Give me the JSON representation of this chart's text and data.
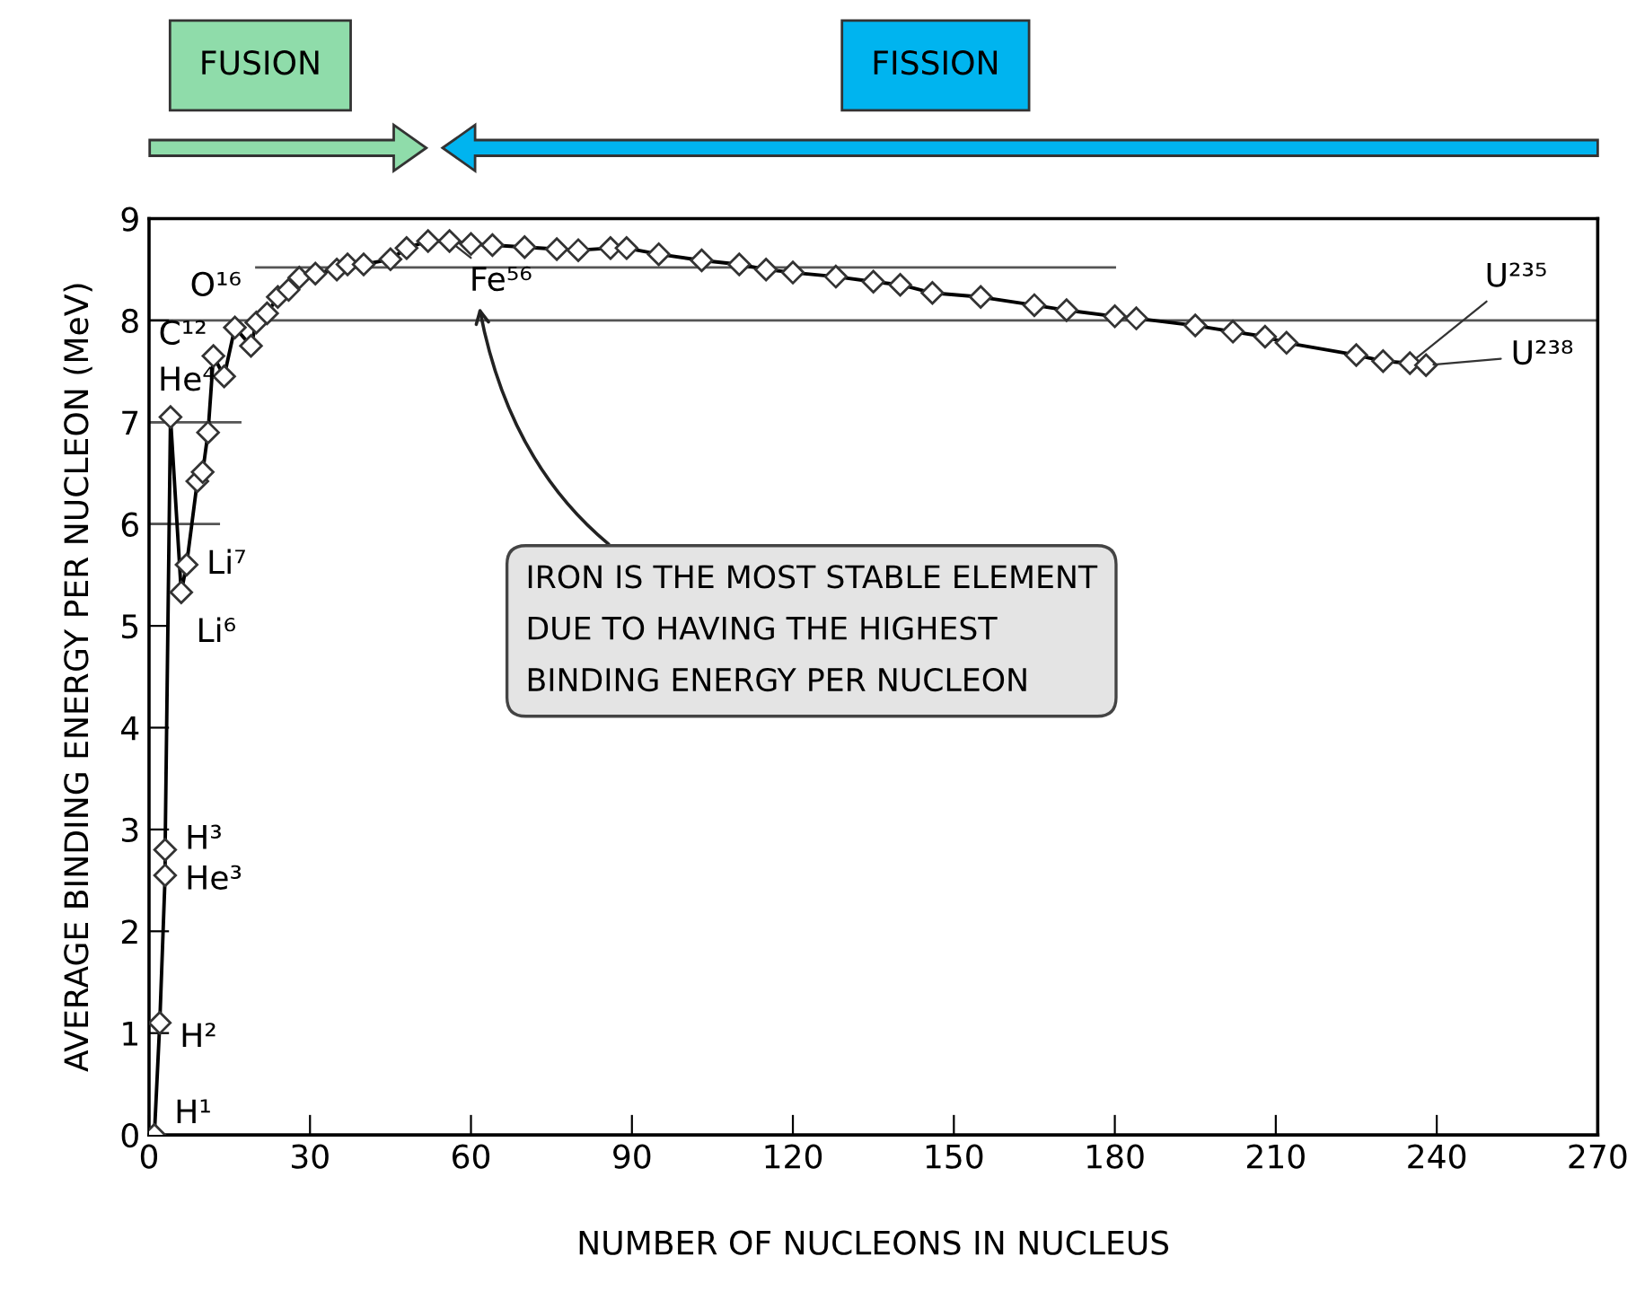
{
  "chart_data": {
    "type": "line",
    "xlabel": "NUMBER OF NUCLEONS IN NUCLEUS",
    "ylabel": "AVERAGE BINDING ENERGY PER NUCLEON (MeV)",
    "xlim": [
      0,
      270
    ],
    "xticks": [
      0,
      30,
      60,
      90,
      120,
      150,
      180,
      210,
      240,
      270
    ],
    "ylim": [
      0,
      9
    ],
    "yticks": [
      0,
      1,
      2,
      3,
      4,
      5,
      6,
      7,
      8,
      9
    ],
    "grid": false,
    "legend": false,
    "marker": "diamond",
    "line_style": "solid",
    "series": [
      {
        "color": "#000000",
        "x": [
          1,
          2,
          3,
          3,
          4,
          6,
          7,
          9,
          10,
          11,
          12,
          14,
          16,
          19,
          20,
          22,
          24,
          26,
          28,
          31,
          35,
          37,
          40,
          45,
          48,
          52,
          56,
          60,
          64,
          70,
          76,
          80,
          86,
          89,
          95,
          103,
          110,
          115,
          120,
          128,
          135,
          140,
          146,
          155,
          165,
          171,
          180,
          184,
          195,
          202,
          208,
          212,
          225,
          230,
          235,
          238
        ],
        "values": [
          0,
          1.1,
          2.55,
          2.8,
          7.05,
          5.33,
          5.6,
          6.42,
          6.51,
          6.9,
          7.65,
          7.45,
          7.93,
          7.75,
          7.98,
          8.07,
          8.23,
          8.3,
          8.42,
          8.46,
          8.5,
          8.55,
          8.55,
          8.6,
          8.71,
          8.78,
          8.78,
          8.75,
          8.74,
          8.72,
          8.7,
          8.69,
          8.71,
          8.71,
          8.65,
          8.59,
          8.55,
          8.5,
          8.47,
          8.43,
          8.38,
          8.35,
          8.27,
          8.23,
          8.15,
          8.1,
          8.04,
          8.02,
          7.95,
          7.89,
          7.84,
          7.78,
          7.66,
          7.6,
          7.58,
          7.56
        ]
      },
      {
        "type": "line",
        "color": "#555555",
        "marker": "none",
        "x": [
          20,
          180
        ],
        "values": [
          8.52,
          8.52
        ]
      },
      {
        "type": "line",
        "color": "#555555",
        "marker": "none",
        "x": [
          0,
          17
        ],
        "values": [
          7,
          7
        ]
      },
      {
        "type": "line",
        "color": "#555555",
        "marker": "none",
        "x": [
          0,
          13
        ],
        "values": [
          6,
          6
        ]
      }
    ],
    "ref_lines": [
      {
        "axis": "y",
        "value": 8,
        "color": "#555555"
      }
    ],
    "annotations": [
      "FUSION",
      "FISSION",
      {
        "text": "H¹",
        "x": 1,
        "y": 0
      },
      {
        "text": "H²",
        "x": 2,
        "y": 1.1
      },
      {
        "text": "He³",
        "x": 3,
        "y": 2.55
      },
      {
        "text": "H³",
        "x": 3,
        "y": 2.8
      },
      {
        "text": "He⁴",
        "x": 4,
        "y": 7.05
      },
      {
        "text": "Li⁶",
        "x": 6,
        "y": 5.33
      },
      {
        "text": "Li⁷",
        "x": 7,
        "y": 5.6
      },
      {
        "text": "C¹²",
        "x": 12,
        "y": 7.65
      },
      {
        "text": "O¹⁶",
        "x": 16,
        "y": 7.93
      },
      {
        "text": "Fe⁵⁶",
        "x": 56,
        "y": 8.78
      },
      {
        "text": "U²³⁵",
        "x": 235,
        "y": 7.58
      },
      {
        "text": "U²³⁸",
        "x": 238,
        "y": 7.56
      },
      "IRON IS THE MOST STABLE ELEMENT\nDUE TO HAVING THE HIGHEST\nBINDING ENERGY PER NUCLEON"
    ]
  }
}
